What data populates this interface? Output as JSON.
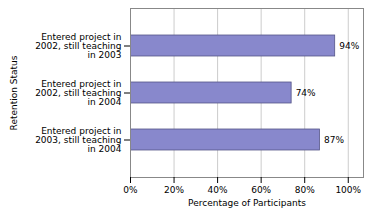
{
  "chart_data": {
    "type": "bar",
    "orientation": "horizontal",
    "categories": [
      "Entered project in\n2002, still teaching\nin 2003",
      "Entered project in\n2002, still teaching\nin 2004",
      "Entered project in\n2003, still teaching\nin 2004"
    ],
    "values": [
      94,
      74,
      87
    ],
    "value_labels": [
      "94%",
      "74%",
      "87%"
    ],
    "data_labels": true,
    "color": "#8888cc",
    "xlabel": "Percentage of Participants",
    "ylabel": "Retention Status",
    "xlim": [
      0,
      107
    ],
    "xticks": [
      {
        "value": 0,
        "label": "0%"
      },
      {
        "value": 20,
        "label": "20%"
      },
      {
        "value": 40,
        "label": "40%"
      },
      {
        "value": 60,
        "label": "60%"
      },
      {
        "value": 80,
        "label": "80%"
      },
      {
        "value": 100,
        "label": "100%"
      }
    ],
    "grid": true
  }
}
